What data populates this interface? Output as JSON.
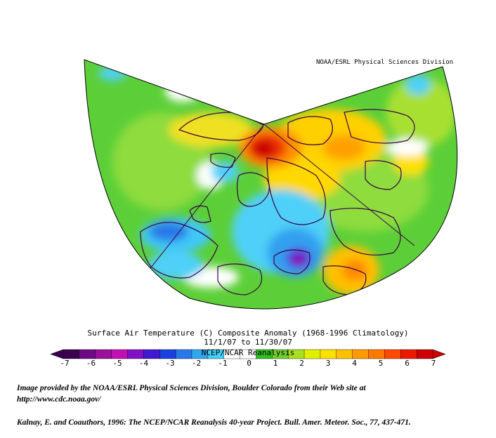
{
  "map": {
    "credit": "NOAA/ESRL Physical Sciences Division",
    "title_line1": "Surface Air Temperature (C) Composite Anomaly (1968-1996 Climatology)",
    "title_line2": "11/1/07  to 11/30/07",
    "source_label": "NCEP/NCAR Reanalysis",
    "projection": "polar-sector",
    "variable": "surface air temperature anomaly",
    "units": "C"
  },
  "colorbar": {
    "ticks": [
      "-7",
      "-6",
      "-5",
      "-4",
      "-3",
      "-2",
      "-1",
      "0",
      "1",
      "2",
      "3",
      "4",
      "5",
      "6",
      "7"
    ],
    "colors": [
      "#3c0050",
      "#6e0a86",
      "#9a109c",
      "#c010b4",
      "#8010c8",
      "#4018d0",
      "#1a40e0",
      "#2a78e8",
      "#30a8f0",
      "#40d0f8",
      "#ffffff",
      "#ffffff",
      "#30c020",
      "#70d030",
      "#a8e020",
      "#e0f000",
      "#ffe000",
      "#ffc000",
      "#ff9a00",
      "#ff7800",
      "#ff4800",
      "#ee1800",
      "#cc0000"
    ]
  },
  "citations": {
    "line1": "Image provided by the NOAA/ESRL Physical Sciences Division, Boulder Colorado from their Web site at",
    "line2": "http://www.cdc.noaa.gov/",
    "line3": "Kalnay, E. and Coauthors, 1996: The NCEP/NCAR Reanalysis 40-year Project. Bull. Amer. Meteor. Soc., 77, 437-471."
  }
}
